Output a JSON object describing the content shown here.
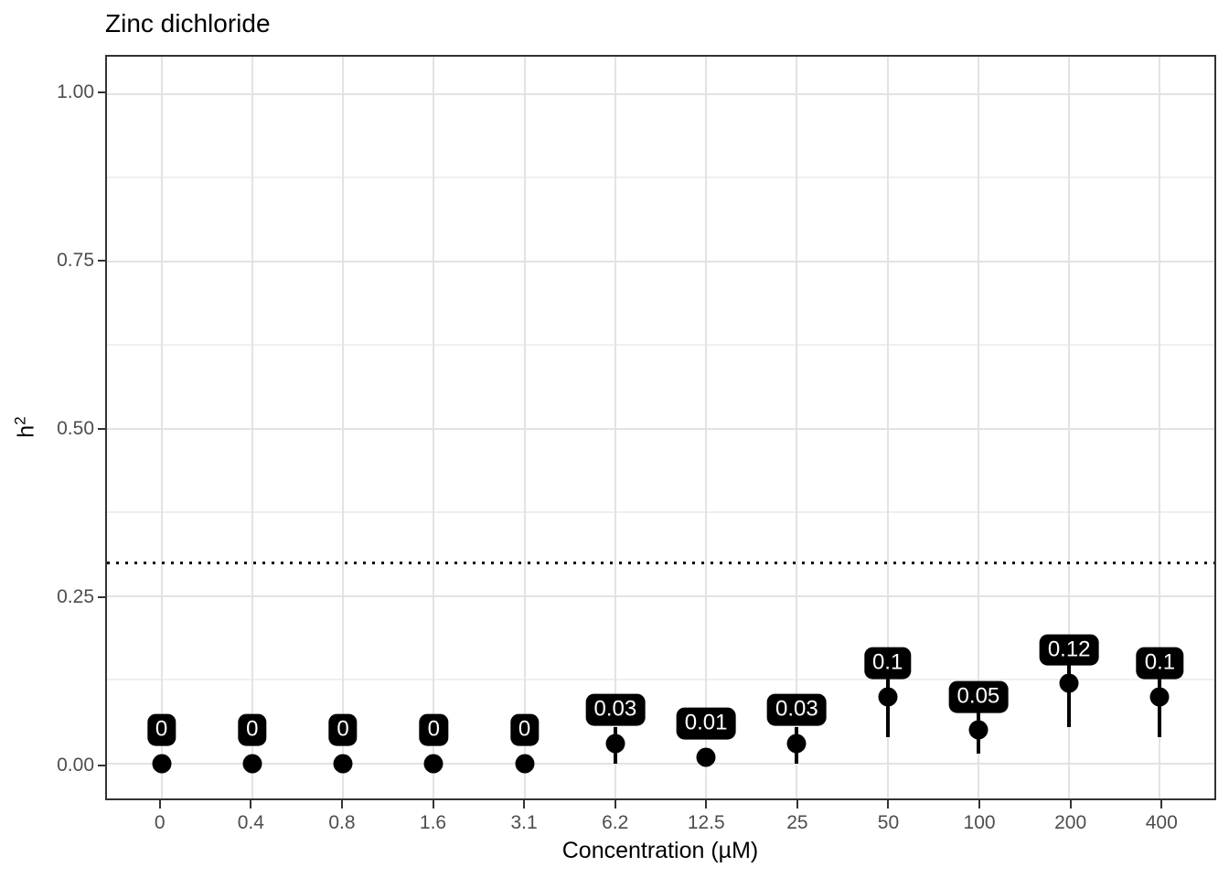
{
  "chart_data": {
    "type": "scatter",
    "title": "Zinc dichloride",
    "xlabel": "Concentration (µM)",
    "ylabel": "h²",
    "ylabel_base": "h",
    "ylabel_sup": "2",
    "categories": [
      "0",
      "0.4",
      "0.8",
      "1.6",
      "3.1",
      "6.2",
      "12.5",
      "25",
      "50",
      "100",
      "200",
      "400"
    ],
    "values": [
      0,
      0,
      0,
      0,
      0,
      0.03,
      0.01,
      0.03,
      0.1,
      0.05,
      0.12,
      0.1
    ],
    "point_labels": [
      "0",
      "0",
      "0",
      "0",
      "0",
      "0.03",
      "0.01",
      "0.03",
      "0.1",
      "0.05",
      "0.12",
      "0.1"
    ],
    "error_low": [
      null,
      null,
      null,
      null,
      null,
      0,
      null,
      0,
      0.04,
      0.015,
      0.055,
      0.04
    ],
    "error_high": [
      null,
      null,
      null,
      null,
      null,
      0.055,
      null,
      0.055,
      0.16,
      0.085,
      0.185,
      0.16
    ],
    "y_ticks": [
      {
        "value": 0.0,
        "label": "0.00"
      },
      {
        "value": 0.25,
        "label": "0.25"
      },
      {
        "value": 0.5,
        "label": "0.50"
      },
      {
        "value": 0.75,
        "label": "0.75"
      },
      {
        "value": 1.0,
        "label": "1.00"
      }
    ],
    "y_minor": [
      0.125,
      0.375,
      0.625,
      0.875
    ],
    "reference_line": {
      "y": 0.3,
      "style": "dotted"
    },
    "ylim": [
      -0.052,
      1.056
    ],
    "x_expand": 0.6,
    "label_offset_y": 0.05,
    "grid": true,
    "legend": "none",
    "colors": {
      "point": "#000000",
      "label_bg": "#000000",
      "label_text": "#ffffff",
      "grid_major": "#e3e3e3",
      "grid_minor": "#efefef",
      "panel_border": "#333333",
      "tick": "#333333",
      "tick_label": "#4d4d4d",
      "title": "#000000",
      "background": "#ffffff"
    }
  }
}
